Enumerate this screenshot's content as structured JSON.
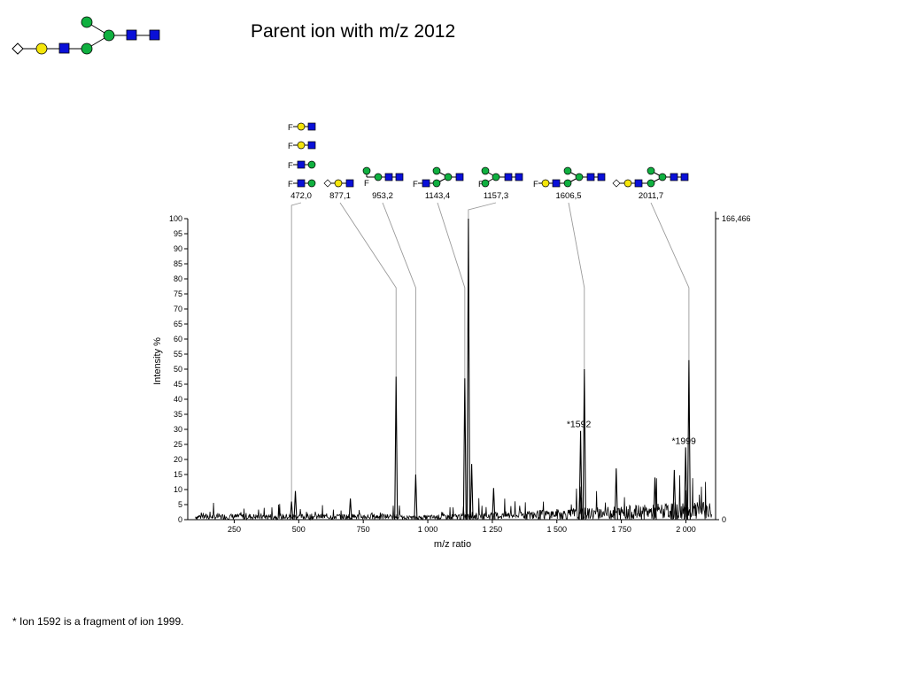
{
  "title": "Parent ion with m/z 2012",
  "footnote": "* Ion 1592 is a fragment of ion 1999.",
  "colors": {
    "galactose": "#f5e60a",
    "glcnac": "#0a10d8",
    "mannose": "#10b040",
    "sialic": "#ffffff",
    "spectrum": "#000000",
    "leader": "#9a9a9a"
  },
  "chart_data": {
    "type": "line",
    "xlabel": "m/z ratio",
    "ylabel": "Intensity %",
    "xlim": [
      70,
      2115
    ],
    "ylim": [
      0,
      100
    ],
    "x_ticks": [
      250,
      500,
      750,
      1000,
      1250,
      1500,
      1750,
      2000
    ],
    "x_tick_labels": [
      "250",
      "500",
      "750",
      "1 000",
      "1 250",
      "1 500",
      "1 750",
      "2 000"
    ],
    "y_ticks": [
      0,
      5,
      10,
      15,
      20,
      25,
      30,
      35,
      40,
      45,
      50,
      55,
      60,
      65,
      70,
      75,
      80,
      85,
      90,
      95,
      100
    ],
    "right_axis_labels": {
      "top": "166,466",
      "bottom": "0"
    },
    "grid": false,
    "peaks": [
      {
        "mz": 472.0,
        "intensity": 6
      },
      {
        "mz": 487.0,
        "intensity": 9.5
      },
      {
        "mz": 877.1,
        "intensity": 47.5
      },
      {
        "mz": 953.2,
        "intensity": 15
      },
      {
        "mz": 1143.4,
        "intensity": 47
      },
      {
        "mz": 1157.3,
        "intensity": 100
      },
      {
        "mz": 1170.0,
        "intensity": 18.5
      },
      {
        "mz": 1592.0,
        "intensity": 29.5
      },
      {
        "mz": 1606.5,
        "intensity": 50
      },
      {
        "mz": 1999.0,
        "intensity": 24
      },
      {
        "mz": 2011.7,
        "intensity": 53
      },
      {
        "mz": 1730.0,
        "intensity": 17
      },
      {
        "mz": 1590.0,
        "intensity": 11
      },
      {
        "mz": 1255.0,
        "intensity": 10.5
      },
      {
        "mz": 700.0,
        "intensity": 7
      },
      {
        "mz": 1880.0,
        "intensity": 14
      },
      {
        "mz": 1955.0,
        "intensity": 16.5
      }
    ],
    "annotations": [
      {
        "text": "472,0",
        "mz": 472.0
      },
      {
        "text": "877,1",
        "mz": 877.1
      },
      {
        "text": "953,2",
        "mz": 953.2
      },
      {
        "text": "1143,4",
        "mz": 1143.4
      },
      {
        "text": "1157,3",
        "mz": 1157.3
      },
      {
        "text": "1606,5",
        "mz": 1606.5
      },
      {
        "text": "2011,7",
        "mz": 2011.7
      }
    ],
    "marked_peaks": [
      {
        "text": "*1592",
        "mz": 1592,
        "intensity": 29.5
      },
      {
        "text": "*1999",
        "mz": 1999,
        "intensity": 24
      }
    ]
  }
}
